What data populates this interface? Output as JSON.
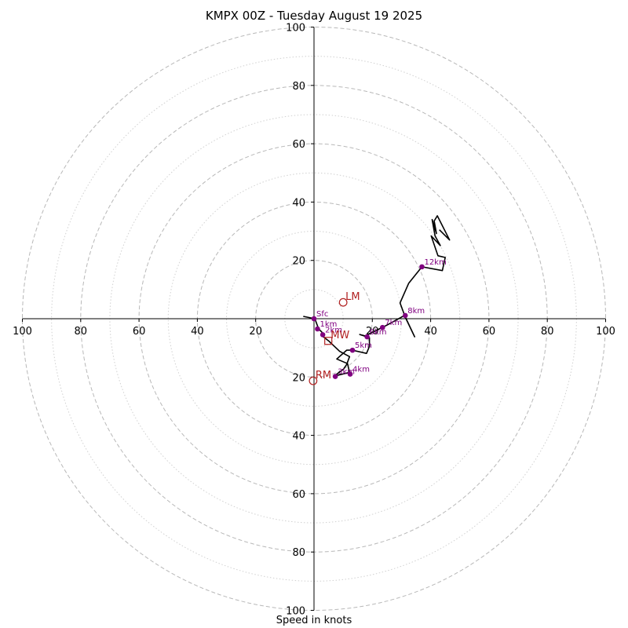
{
  "title": "KMPX 00Z - Tuesday August 19 2025",
  "xlabel": "Speed in knots",
  "colors": {
    "ring_major": "#b8b8b8",
    "ring_minor": "#d0d0d0",
    "hodograph": "#000000",
    "height_marker": "#800080",
    "motion_marker": "#b22222"
  },
  "chart_data": {
    "type": "hodograph",
    "units": "knots",
    "xlim": [
      -100,
      100
    ],
    "ylim": [
      -100,
      100
    ],
    "ring_major_step": 20,
    "ring_minor_step": 10,
    "grid": true,
    "x_ticks": [
      {
        "value": -100,
        "label": "100"
      },
      {
        "value": -80,
        "label": "80"
      },
      {
        "value": -60,
        "label": "60"
      },
      {
        "value": -40,
        "label": "40"
      },
      {
        "value": -20,
        "label": "20"
      },
      {
        "value": 20,
        "label": "20"
      },
      {
        "value": 40,
        "label": "40"
      },
      {
        "value": 60,
        "label": "60"
      },
      {
        "value": 80,
        "label": "80"
      },
      {
        "value": 100,
        "label": "100"
      }
    ],
    "y_ticks": [
      {
        "value": 100,
        "label": "100"
      },
      {
        "value": 80,
        "label": "80"
      },
      {
        "value": 60,
        "label": "60"
      },
      {
        "value": 40,
        "label": "40"
      },
      {
        "value": 20,
        "label": "20"
      },
      {
        "value": -20,
        "label": "20"
      },
      {
        "value": -40,
        "label": "40"
      },
      {
        "value": -60,
        "label": "60"
      },
      {
        "value": -80,
        "label": "80"
      },
      {
        "value": -100,
        "label": "100"
      }
    ],
    "hodograph": [
      {
        "u": -3.7,
        "v": 0.8
      },
      {
        "u": 0.3,
        "v": 0.0
      },
      {
        "u": 1.6,
        "v": -3.5
      },
      {
        "u": 2.7,
        "v": -4.6
      },
      {
        "u": 3.2,
        "v": -6.2
      },
      {
        "u": 5.0,
        "v": -7.6
      },
      {
        "u": 8.8,
        "v": -11.2
      },
      {
        "u": 12.2,
        "v": -13.0
      },
      {
        "u": 11.2,
        "v": -15.7
      },
      {
        "u": 10.1,
        "v": -17.3
      },
      {
        "u": 6.9,
        "v": -19.7
      },
      {
        "u": 12.2,
        "v": -18.4
      },
      {
        "u": 11.5,
        "v": -15.4
      },
      {
        "u": 7.8,
        "v": -13.8
      },
      {
        "u": 11.2,
        "v": -10.8
      },
      {
        "u": 13.2,
        "v": -10.8
      },
      {
        "u": 18.0,
        "v": -11.9
      },
      {
        "u": 19.0,
        "v": -9.5
      },
      {
        "u": 19.0,
        "v": -6.5
      },
      {
        "u": 15.7,
        "v": -5.4
      },
      {
        "u": 17.5,
        "v": -5.9
      },
      {
        "u": 23.0,
        "v": -3.2
      },
      {
        "u": 25.0,
        "v": -2.2
      },
      {
        "u": 31.0,
        "v": 1.1
      },
      {
        "u": 34.5,
        "v": -6.2
      },
      {
        "u": 31.2,
        "v": 0.8
      },
      {
        "u": 29.5,
        "v": 5.4
      },
      {
        "u": 32.5,
        "v": 12.2
      },
      {
        "u": 37.0,
        "v": 17.8
      },
      {
        "u": 44.0,
        "v": 16.5
      },
      {
        "u": 45.0,
        "v": 21.0
      },
      {
        "u": 42.5,
        "v": 21.6
      },
      {
        "u": 40.2,
        "v": 28.4
      },
      {
        "u": 43.3,
        "v": 25.1
      },
      {
        "u": 41.5,
        "v": 28.4
      },
      {
        "u": 40.5,
        "v": 34.0
      },
      {
        "u": 42.0,
        "v": 29.2
      },
      {
        "u": 41.2,
        "v": 33.5
      },
      {
        "u": 42.3,
        "v": 35.3
      },
      {
        "u": 46.5,
        "v": 27.0
      },
      {
        "u": 43.0,
        "v": 30.5
      }
    ],
    "height_markers": [
      {
        "label": "Sfc",
        "u": 0.0,
        "v": 0.0
      },
      {
        "label": "1km",
        "u": 1.2,
        "v": -3.5
      },
      {
        "label": "2km",
        "u": 3.0,
        "v": -5.5
      },
      {
        "label": "3km",
        "u": 7.3,
        "v": -19.8
      },
      {
        "label": "4km",
        "u": 12.4,
        "v": -19.0
      },
      {
        "label": "5km",
        "u": 13.2,
        "v": -10.8
      },
      {
        "label": "6km",
        "u": 18.2,
        "v": -6.2
      },
      {
        "label": "7km",
        "u": 23.5,
        "v": -3.0
      },
      {
        "label": "8km",
        "u": 31.3,
        "v": 1.1
      },
      {
        "label": "12km",
        "u": 37.0,
        "v": 17.8
      }
    ],
    "storm_motion": [
      {
        "label": "LM",
        "u": 10.0,
        "v": 5.6,
        "marker": "circle"
      },
      {
        "label": "MW",
        "u": 4.9,
        "v": -7.6,
        "marker": "square"
      },
      {
        "label": "RM",
        "u": -0.3,
        "v": -21.3,
        "marker": "circle"
      }
    ]
  }
}
